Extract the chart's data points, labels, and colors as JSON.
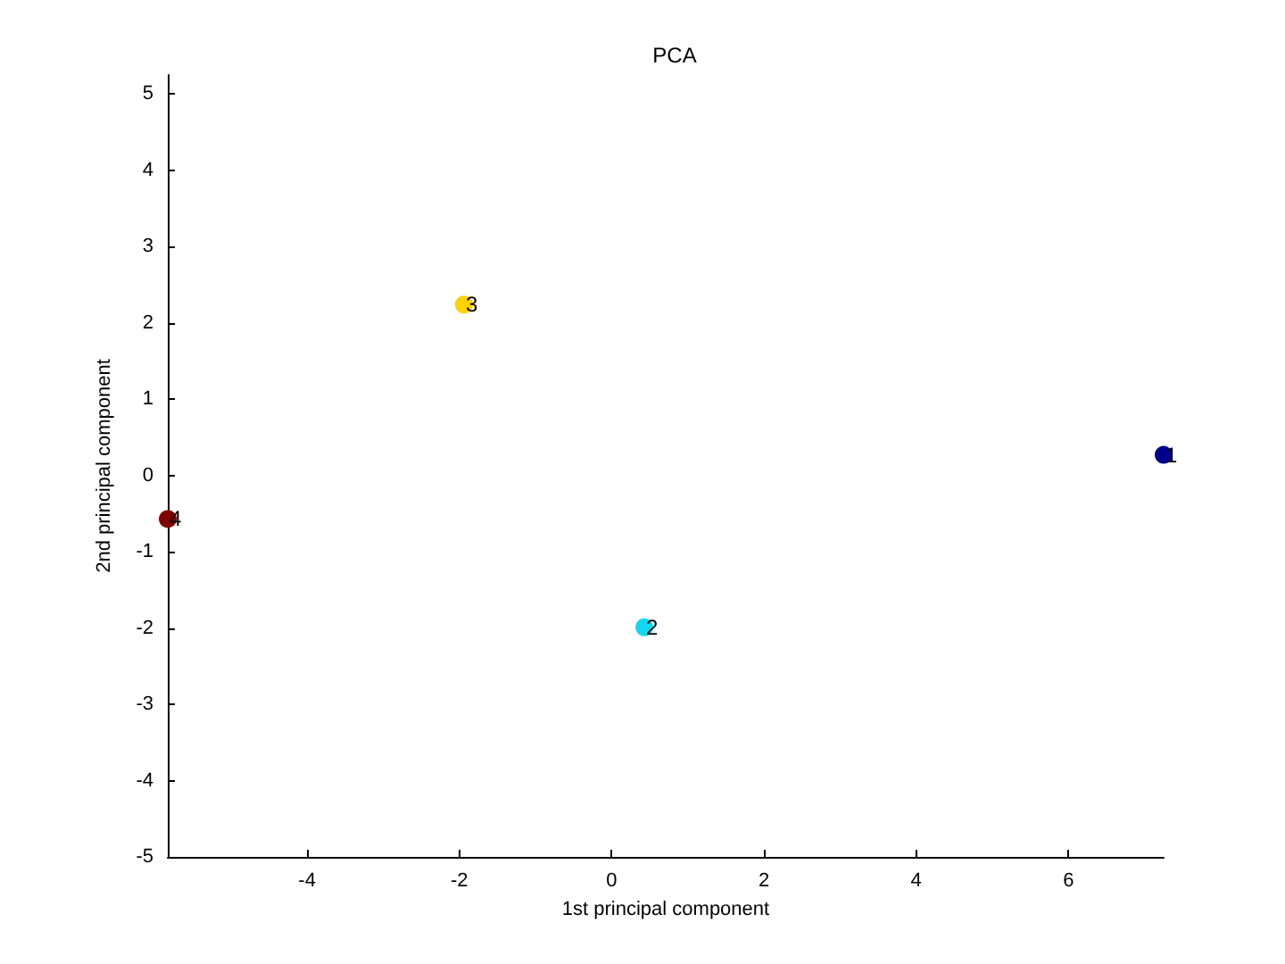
{
  "chart_data": {
    "type": "scatter",
    "title": "PCA",
    "xlabel": "1st principal component",
    "ylabel": "2nd principal component",
    "x": [
      7.25,
      0.43,
      -1.94,
      -5.83
    ],
    "values": [
      0.27,
      -1.99,
      2.24,
      -0.57
    ],
    "colors": [
      "#000090",
      "#10d8f0",
      "#ffd200",
      "#800000"
    ],
    "marker": "circle",
    "grid": false,
    "xlim": [
      -5.83,
      7.25
    ],
    "ylim": [
      -5,
      5.25
    ],
    "xticks": [
      -4,
      -2,
      0,
      2,
      4,
      6
    ],
    "yticks": [
      -5,
      -4,
      -3,
      -2,
      -1,
      0,
      1,
      2,
      3,
      4,
      5
    ],
    "annotations": [
      {
        "text": "1",
        "x": 7.25,
        "y": 0.27
      },
      {
        "text": "2",
        "x": 0.43,
        "y": -1.99
      },
      {
        "text": "3",
        "x": -1.94,
        "y": 2.24
      },
      {
        "text": "4",
        "x": -5.83,
        "y": -0.57
      }
    ]
  }
}
